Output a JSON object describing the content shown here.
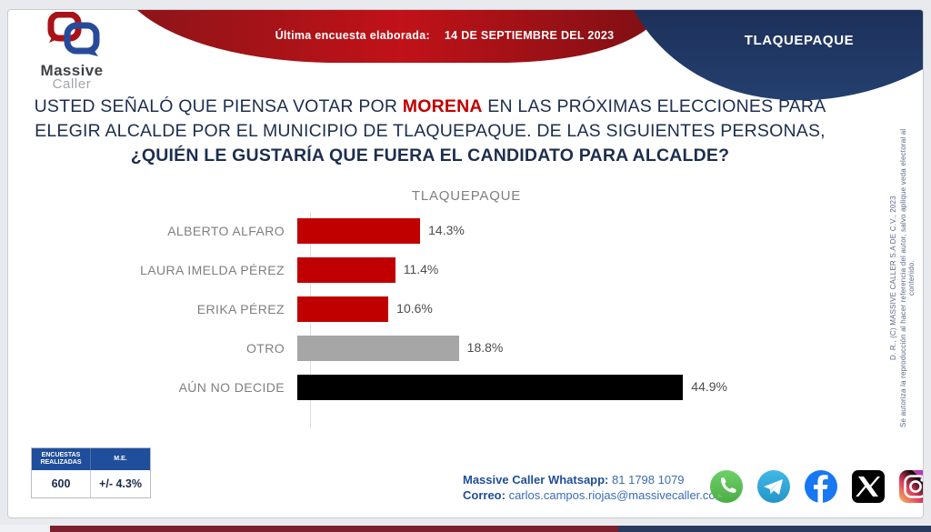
{
  "header": {
    "logo": {
      "line1": "Massive",
      "line2": "Caller"
    },
    "banner": {
      "label": "Última encuesta elaborada:",
      "date": "14 DE SEPTIEMBRE DEL 2023"
    },
    "region_tab": "TLAQUEPAQUE"
  },
  "question": {
    "part1": "USTED SEÑALÓ QUE PIENSA VOTAR POR ",
    "highlight": "MORENA",
    "part2": " EN LAS PRÓXIMAS ELECCIONES PARA ELEGIR ALCALDE POR EL MUNICIPIO DE TLAQUEPAQUE.  DE LAS SIGUIENTES PERSONAS,",
    "part3": "¿QUIÉN LE GUSTARÍA QUE FUERA EL CANDIDATO PARA ALCALDE?"
  },
  "chart_data": {
    "type": "bar",
    "orientation": "horizontal",
    "title": "TLAQUEPAQUE",
    "categories": [
      "ALBERTO ALFARO",
      "LAURA IMELDA PÉREZ",
      "ERIKA PÉREZ",
      "OTRO",
      "AÚN NO DECIDE"
    ],
    "values": [
      14.3,
      11.4,
      10.6,
      18.8,
      44.9
    ],
    "value_labels": [
      "14.3%",
      "11.4%",
      "10.6%",
      "18.8%",
      "44.9%"
    ],
    "bar_colors": [
      "#c00000",
      "#c00000",
      "#c00000",
      "#a6a6a6",
      "#000000"
    ],
    "unit": "%",
    "xlim": [
      0,
      50
    ],
    "grid": false,
    "legend": "none"
  },
  "stats_table": {
    "headers": [
      "ENCUESTAS REALIZADAS",
      "M.E."
    ],
    "values": [
      "600",
      "+/- 4.3%"
    ]
  },
  "contact": {
    "whatsapp_label": "Massive Caller Whatsapp:",
    "whatsapp_number": "81 1798 1079",
    "email_label": "Correo:",
    "email": "carlos.campos.riojas@massivecaller.com"
  },
  "social_icons": [
    "whatsapp-icon",
    "telegram-icon",
    "facebook-icon",
    "x-icon",
    "instagram-icon"
  ],
  "legal": {
    "line1": "D. R., (C) MASSIVE CALLER S.A DE C.V., 2023",
    "line2": "Se autoriza la reproducción al hacer referencia del autor, salvo aplique veda electoral al contenido."
  },
  "colors": {
    "accent_red": "#c00000",
    "navy": "#203864",
    "banner_red_start": "#8d1418",
    "banner_red_mid": "#c01218",
    "banner_red_end": "#7d1014",
    "table_header_blue": "#1f4e9c",
    "contact_blue": "#1f4e9c",
    "bar_gray": "#a6a6a6",
    "bar_black": "#000000"
  }
}
